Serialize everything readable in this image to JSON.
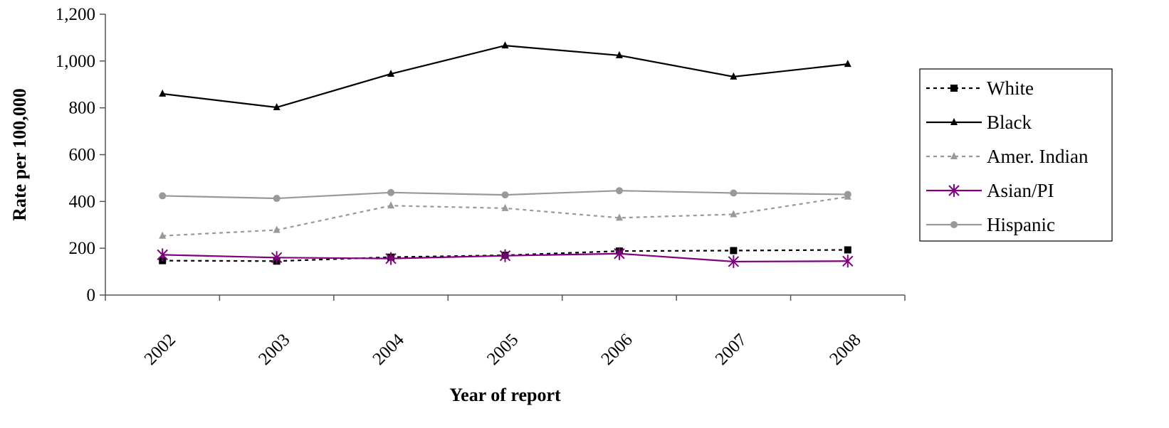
{
  "chart_data": {
    "type": "line",
    "title": "",
    "xlabel": "Year of report",
    "ylabel": "Rate per 100,000",
    "categories": [
      "2002",
      "2003",
      "2004",
      "2005",
      "2006",
      "2007",
      "2008"
    ],
    "ylim": [
      0,
      1200
    ],
    "yticks": [
      0,
      200,
      400,
      600,
      800,
      1000,
      1200
    ],
    "ytick_labels": [
      "0",
      "200",
      "400",
      "600",
      "800",
      "1,000",
      "1,200"
    ],
    "grid": false,
    "legend_position": "right",
    "series": [
      {
        "name": "White",
        "values": [
          147,
          145,
          162,
          170,
          188,
          190,
          193
        ],
        "color": "#000000",
        "dash": "dotted",
        "marker": "square"
      },
      {
        "name": "Black",
        "values": [
          860,
          802,
          945,
          1066,
          1024,
          933,
          987
        ],
        "color": "#000000",
        "dash": "solid",
        "marker": "triangle"
      },
      {
        "name": "Amer. Indian",
        "values": [
          253,
          278,
          382,
          371,
          330,
          345,
          420
        ],
        "color": "#999999",
        "dash": "dotted",
        "marker": "triangle"
      },
      {
        "name": "Asian/PI",
        "values": [
          172,
          160,
          156,
          168,
          177,
          143,
          145
        ],
        "color": "#800080",
        "dash": "solid",
        "marker": "asterisk"
      },
      {
        "name": "Hispanic",
        "values": [
          424,
          413,
          438,
          428,
          446,
          436,
          430
        ],
        "color": "#999999",
        "dash": "solid",
        "marker": "circle"
      }
    ]
  }
}
